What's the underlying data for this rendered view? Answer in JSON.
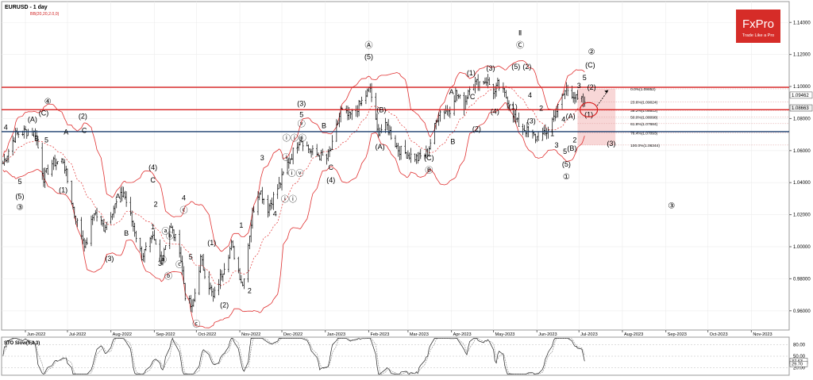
{
  "header": {
    "symbol_title": "EURUSD - 1 day",
    "indicator_label": "BB(20,20,2.0,0)"
  },
  "brand": {
    "logo_text": "FxPro",
    "tagline": "Trade Like a Pro",
    "background_color": "#d62c28"
  },
  "colors": {
    "candle": "#000000",
    "bollinger": "#e03030",
    "resistance_line": "#d81f1f",
    "support_line": "#1b3f6e",
    "fib_zone": "#f3b7b7",
    "stochastic": "#202020"
  },
  "chart_data": [
    {
      "type": "candlestick",
      "title": "EURUSD - 1 day",
      "x_ticks": [
        "Jun-2022",
        "Jul-2022",
        "Aug-2022",
        "Sep-2022",
        "Oct-2022",
        "Nov-2022",
        "Dec-2022",
        "Jan-2023",
        "Feb-2023",
        "Mar-2023",
        "Apr-2023",
        "May-2023",
        "Jun-2023",
        "Jul-2023",
        "Aug-2023",
        "Sep-2023",
        "Oct-2023",
        "Nov-2023"
      ],
      "y_ticks": [
        "1.14000",
        "1.12000",
        "1.10000",
        "1.08000",
        "1.06000",
        "1.04000",
        "1.02000",
        "1.00000",
        "0.98000",
        "0.96000"
      ],
      "ylim": [
        0.948,
        1.153
      ],
      "x_range_months": [
        "2022-05-15",
        "2023-11-28"
      ],
      "price_tags": [
        {
          "label": "1.09462",
          "value": 1.09462
        },
        {
          "label": "1.08663",
          "value": 1.08663
        }
      ],
      "close_path": [
        [
          "2022-05-16",
          1.052
        ],
        [
          "2022-05-25",
          1.07
        ],
        [
          "2022-06-01",
          1.072
        ],
        [
          "2022-06-08",
          1.071
        ],
        [
          "2022-06-14",
          1.043
        ],
        [
          "2022-06-20",
          1.052
        ],
        [
          "2022-06-28",
          1.054
        ],
        [
          "2022-07-06",
          1.02
        ],
        [
          "2022-07-14",
          1.0
        ],
        [
          "2022-07-20",
          1.022
        ],
        [
          "2022-07-27",
          1.012
        ],
        [
          "2022-08-02",
          1.023
        ],
        [
          "2022-08-10",
          1.034
        ],
        [
          "2022-08-18",
          1.01
        ],
        [
          "2022-08-23",
          0.994
        ],
        [
          "2022-08-31",
          1.005
        ],
        [
          "2022-09-06",
          0.992
        ],
        [
          "2022-09-12",
          1.013
        ],
        [
          "2022-09-19",
          0.999
        ],
        [
          "2022-09-23",
          0.97
        ],
        [
          "2022-09-28",
          0.961
        ],
        [
          "2022-10-04",
          0.992
        ],
        [
          "2022-10-13",
          0.968
        ],
        [
          "2022-10-26",
          1.001
        ],
        [
          "2022-11-03",
          0.976
        ],
        [
          "2022-11-10",
          1.021
        ],
        [
          "2022-11-15",
          1.036
        ],
        [
          "2022-11-21",
          1.024
        ],
        [
          "2022-11-30",
          1.04
        ],
        [
          "2022-12-05",
          1.052
        ],
        [
          "2022-12-14",
          1.068
        ],
        [
          "2022-12-22",
          1.059
        ],
        [
          "2023-01-02",
          1.055
        ],
        [
          "2023-01-06",
          1.063
        ],
        [
          "2023-01-12",
          1.085
        ],
        [
          "2023-01-18",
          1.081
        ],
        [
          "2023-01-26",
          1.089
        ],
        [
          "2023-02-02",
          1.099
        ],
        [
          "2023-02-07",
          1.072
        ],
        [
          "2023-02-14",
          1.075
        ],
        [
          "2023-02-22",
          1.061
        ],
        [
          "2023-02-28",
          1.058
        ],
        [
          "2023-03-08",
          1.055
        ],
        [
          "2023-03-15",
          1.059
        ],
        [
          "2023-03-23",
          1.084
        ],
        [
          "2023-03-31",
          1.086
        ],
        [
          "2023-04-04",
          1.096
        ],
        [
          "2023-04-10",
          1.088
        ],
        [
          "2023-04-14",
          1.101
        ],
        [
          "2023-04-26",
          1.104
        ],
        [
          "2023-05-02",
          1.096
        ],
        [
          "2023-05-04",
          1.101
        ],
        [
          "2023-05-11",
          1.092
        ],
        [
          "2023-05-18",
          1.077
        ],
        [
          "2023-05-31",
          1.068
        ],
        [
          "2023-06-07",
          1.07
        ],
        [
          "2023-06-14",
          1.083
        ],
        [
          "2023-06-22",
          1.099
        ],
        [
          "2023-06-27",
          1.095
        ],
        [
          "2023-06-30",
          1.091
        ],
        [
          "2023-07-03",
          1.091
        ],
        [
          "2023-07-05",
          1.088
        ]
      ],
      "horizontal_levels": [
        {
          "name": "resistance",
          "value": 1.0995
        },
        {
          "name": "resistance-2",
          "value": 1.0855
        },
        {
          "name": "support",
          "value": 1.0718
        }
      ],
      "fibonacci": {
        "x_start": "2023-06-30",
        "x_end": "2023-07-27",
        "levels": [
          {
            "label": "0.0%(1.09852)",
            "value": 1.09852
          },
          {
            "label": "23.6%(1.09024)",
            "value": 1.09024
          },
          {
            "label": "38.2%(1.08512)",
            "value": 1.08512
          },
          {
            "label": "50.0%(1.08098)",
            "value": 1.08098
          },
          {
            "label": "61.8%(1.07684)",
            "value": 1.07684
          },
          {
            "label": "76.4%(1.07093)",
            "value": 1.07093
          },
          {
            "label": "100.0%(1.06344)",
            "value": 1.06344
          }
        ]
      },
      "wave_labels": [
        {
          "text": "4",
          "x": "2022-05-18",
          "y": 1.073
        },
        {
          "text": "5",
          "x": "2022-05-28",
          "y": 1.039
        },
        {
          "text": "(5)",
          "x": "2022-05-28",
          "y": 1.03
        },
        {
          "text": "③",
          "x": "2022-05-28",
          "y": 1.023
        },
        {
          "text": "(A)",
          "x": "2022-06-06",
          "y": 1.078
        },
        {
          "text": "(C)",
          "x": "2022-06-14",
          "y": 1.082
        },
        {
          "text": "④",
          "x": "2022-06-17",
          "y": 1.089
        },
        {
          "text": "B",
          "x": "2022-06-09",
          "y": 1.066
        },
        {
          "text": "5",
          "x": "2022-06-16",
          "y": 1.065
        },
        {
          "text": "(1)",
          "x": "2022-06-28",
          "y": 1.034
        },
        {
          "text": "A",
          "x": "2022-06-30",
          "y": 1.07
        },
        {
          "text": "(2)",
          "x": "2022-07-12",
          "y": 1.08
        },
        {
          "text": "C",
          "x": "2022-07-13",
          "y": 1.071
        },
        {
          "text": "A",
          "x": "2022-08-06",
          "y": 1.03
        },
        {
          "text": "B",
          "x": "2022-08-12",
          "y": 1.007
        },
        {
          "text": "(3)",
          "x": "2022-07-31",
          "y": 0.991
        },
        {
          "text": "(4)",
          "x": "2022-08-31",
          "y": 1.048
        },
        {
          "text": "C",
          "x": "2022-08-31",
          "y": 1.04
        },
        {
          "text": "2",
          "x": "2022-09-02",
          "y": 1.025
        },
        {
          "text": "1",
          "x": "2022-08-31",
          "y": 1.011
        },
        {
          "text": "3",
          "x": "2022-09-05",
          "y": 0.988
        },
        {
          "text": "ⓐ",
          "x": "2022-09-07",
          "y": 0.99
        },
        {
          "text": "ⓑ",
          "x": "2022-09-11",
          "y": 0.98
        },
        {
          "text": "ⓐ",
          "x": "2022-09-09",
          "y": 1.008
        },
        {
          "text": "ⓑ",
          "x": "2022-09-12",
          "y": 1.005
        },
        {
          "text": "ⓒ",
          "x": "2022-09-19",
          "y": 0.987
        },
        {
          "text": "4",
          "x": "2022-09-22",
          "y": 1.029
        },
        {
          "text": "ⓒ",
          "x": "2022-09-22",
          "y": 1.021
        },
        {
          "text": "5",
          "x": "2022-09-27",
          "y": 0.992
        },
        {
          "text": "ⓒ",
          "x": "2022-10-01",
          "y": 0.95
        },
        {
          "text": "(1)",
          "x": "2022-10-12",
          "y": 1.001
        },
        {
          "text": "(2)",
          "x": "2022-10-21",
          "y": 0.962
        },
        {
          "text": "1",
          "x": "2022-11-02",
          "y": 1.012
        },
        {
          "text": "2",
          "x": "2022-11-08",
          "y": 0.971
        },
        {
          "text": "3",
          "x": "2022-11-17",
          "y": 1.054
        },
        {
          "text": "4",
          "x": "2022-11-26",
          "y": 1.019
        },
        {
          "text": "ⓘ",
          "x": "2022-12-04",
          "y": 1.054
        },
        {
          "text": "ⓘⓘ",
          "x": "2022-12-06",
          "y": 1.028
        },
        {
          "text": "ⓘⓘⓘ",
          "x": "2022-12-10",
          "y": 1.066
        },
        {
          "text": "ⓘⓥ",
          "x": "2022-12-11",
          "y": 1.044
        },
        {
          "text": "(3)",
          "x": "2022-12-15",
          "y": 1.088
        },
        {
          "text": "5",
          "x": "2022-12-15",
          "y": 1.081
        },
        {
          "text": "ⓥ",
          "x": "2022-12-15",
          "y": 1.075
        },
        {
          "text": "B",
          "x": "2022-12-31",
          "y": 1.074
        },
        {
          "text": "C",
          "x": "2023-01-05",
          "y": 1.048
        },
        {
          "text": "(4)",
          "x": "2023-01-05",
          "y": 1.04
        },
        {
          "text": "Ⓐ",
          "x": "2023-02-01",
          "y": 1.124
        },
        {
          "text": "(5)",
          "x": "2023-02-01",
          "y": 1.117
        },
        {
          "text": "(B)",
          "x": "2023-02-10",
          "y": 1.084
        },
        {
          "text": "(A)",
          "x": "2023-02-09",
          "y": 1.061
        },
        {
          "text": "(C)",
          "x": "2023-03-16",
          "y": 1.054
        },
        {
          "text": "Ⓑ",
          "x": "2023-03-16",
          "y": 1.046
        },
        {
          "text": "A",
          "x": "2023-04-01",
          "y": 1.095
        },
        {
          "text": "B",
          "x": "2023-04-02",
          "y": 1.064
        },
        {
          "text": "(1)",
          "x": "2023-04-15",
          "y": 1.107
        },
        {
          "text": "C",
          "x": "2023-04-16",
          "y": 1.092
        },
        {
          "text": "(2)",
          "x": "2023-04-19",
          "y": 1.072
        },
        {
          "text": "(3)",
          "x": "2023-04-29",
          "y": 1.11
        },
        {
          "text": "(4)",
          "x": "2023-05-02",
          "y": 1.083
        },
        {
          "text": "Ⅱ",
          "x": "2023-05-20",
          "y": 1.132
        },
        {
          "text": "Ⓒ",
          "x": "2023-05-20",
          "y": 1.124
        },
        {
          "text": "(5)",
          "x": "2023-05-17",
          "y": 1.111
        },
        {
          "text": "(2)",
          "x": "2023-05-25",
          "y": 1.111
        },
        {
          "text": "(1)",
          "x": "2023-05-15",
          "y": 1.086
        },
        {
          "text": "4",
          "x": "2023-05-27",
          "y": 1.093
        },
        {
          "text": "(3)",
          "x": "2023-05-28",
          "y": 1.077
        },
        {
          "text": "2",
          "x": "2023-06-04",
          "y": 1.085
        },
        {
          "text": "1",
          "x": "2023-06-12",
          "y": 1.069
        },
        {
          "text": "3",
          "x": "2023-06-15",
          "y": 1.062
        },
        {
          "text": "4",
          "x": "2023-06-20",
          "y": 1.078
        },
        {
          "text": "5",
          "x": "2023-06-21",
          "y": 1.058
        },
        {
          "text": "(5)",
          "x": "2023-06-22",
          "y": 1.05
        },
        {
          "text": "①",
          "x": "2023-06-22",
          "y": 1.042
        },
        {
          "text": "(A)",
          "x": "2023-06-25",
          "y": 1.08
        },
        {
          "text": "(B)",
          "x": "2023-06-26",
          "y": 1.06
        },
        {
          "text": "2",
          "x": "2023-06-28",
          "y": 1.065
        },
        {
          "text": "3",
          "x": "2023-07-01",
          "y": 1.099
        },
        {
          "text": "5",
          "x": "2023-07-05",
          "y": 1.104
        },
        {
          "text": "(C)",
          "x": "2023-07-09",
          "y": 1.112
        },
        {
          "text": "②",
          "x": "2023-07-10",
          "y": 1.12
        },
        {
          "text": "(2)",
          "x": "2023-07-10",
          "y": 1.098
        },
        {
          "text": "(1)",
          "x": "2023-07-08",
          "y": 1.081
        },
        {
          "text": "(3)",
          "x": "2023-07-24",
          "y": 1.063
        },
        {
          "text": "③",
          "x": "2023-09-05",
          "y": 1.024
        }
      ],
      "circle_annotation": {
        "x": "2023-07-08",
        "y": 1.0855
      },
      "projection_arrow": {
        "from": [
          "2023-07-14",
          1.088
        ],
        "to": [
          "2023-07-22",
          1.0978
        ]
      }
    },
    {
      "type": "line",
      "title": "STO Slow(5,3,3)",
      "y_ticks": [
        "80.00",
        "50.00",
        "20.00"
      ],
      "ylim": [
        0,
        100
      ],
      "current_tags": [
        {
          "label": "37.63",
          "value": 37.63
        },
        {
          "label": "29.70",
          "value": 29.7
        }
      ]
    }
  ]
}
